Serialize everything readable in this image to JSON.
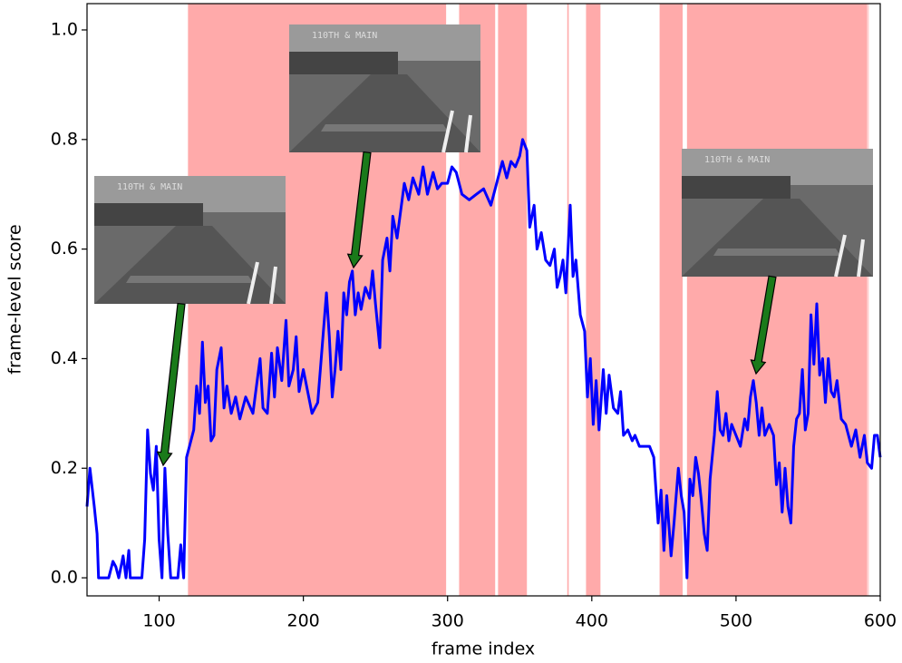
{
  "chart_data": {
    "type": "line",
    "xlabel": "frame index",
    "ylabel": "frame-level score",
    "color": "#0000ff",
    "shade_color": "#ffaaaa",
    "xlim": [
      50,
      600
    ],
    "ylim": [
      -0.033,
      1.048
    ],
    "xticks": [
      100,
      200,
      300,
      400,
      500,
      600
    ],
    "yticks": [
      {
        "value": 0,
        "label": "0.0"
      },
      {
        "value": 0.2,
        "label": "0.2"
      },
      {
        "value": 0.4,
        "label": "0.4"
      },
      {
        "value": 0.6,
        "label": "0.6"
      },
      {
        "value": 0.8,
        "label": "0.8"
      },
      {
        "value": 1,
        "label": "1.0"
      }
    ],
    "shaded_spans": [
      [
        120,
        299
      ],
      [
        308,
        333
      ],
      [
        335,
        355
      ],
      [
        383,
        384
      ],
      [
        396,
        406
      ],
      [
        447,
        463
      ],
      [
        466,
        591
      ],
      [
        591.5,
        592
      ]
    ],
    "x": [
      50,
      52,
      55,
      57,
      58,
      65,
      68,
      70,
      72,
      75,
      77,
      79,
      80,
      88,
      90,
      92,
      94,
      96,
      98,
      100,
      102,
      104,
      106,
      108,
      113,
      115,
      117,
      119,
      121,
      124,
      126,
      128,
      130,
      132,
      134,
      136,
      138,
      140,
      143,
      145,
      147,
      150,
      153,
      156,
      160,
      165,
      168,
      170,
      172,
      175,
      178,
      180,
      182,
      185,
      188,
      190,
      193,
      195,
      197,
      200,
      203,
      206,
      210,
      213,
      216,
      218,
      220,
      222,
      224,
      226,
      228,
      230,
      232,
      234,
      236,
      238,
      240,
      243,
      246,
      248,
      250,
      253,
      255,
      258,
      260,
      262,
      265,
      268,
      270,
      273,
      276,
      280,
      283,
      286,
      290,
      293,
      296,
      300,
      303,
      306,
      310,
      315,
      320,
      325,
      330,
      335,
      338,
      341,
      344,
      347,
      350,
      352,
      355,
      357,
      360,
      362,
      365,
      368,
      371,
      374,
      376,
      378,
      380,
      382,
      385,
      387,
      389,
      392,
      395,
      397,
      399,
      401,
      403,
      405,
      408,
      410,
      412,
      415,
      418,
      420,
      422,
      425,
      428,
      430,
      433,
      436,
      440,
      443,
      446,
      448,
      450,
      452,
      455,
      457,
      460,
      462,
      464,
      466,
      468,
      470,
      472,
      474,
      476,
      478,
      480,
      482,
      485,
      487,
      489,
      491,
      493,
      495,
      497,
      500,
      503,
      506,
      508,
      510,
      512,
      514,
      516,
      518,
      520,
      523,
      526,
      528,
      530,
      532,
      534,
      536,
      538,
      540,
      542,
      544,
      546,
      548,
      550,
      552,
      554,
      556,
      558,
      560,
      562,
      564,
      566,
      568,
      570,
      573,
      576,
      580,
      583,
      586,
      589,
      591,
      594,
      596,
      598,
      600
    ],
    "values": [
      0.13,
      0.2,
      0.13,
      0.08,
      0.0,
      0.0,
      0.03,
      0.02,
      0.0,
      0.04,
      0.0,
      0.05,
      0.0,
      0.0,
      0.07,
      0.27,
      0.19,
      0.16,
      0.24,
      0.07,
      0.0,
      0.2,
      0.08,
      0.0,
      0.0,
      0.06,
      0.0,
      0.22,
      0.24,
      0.27,
      0.35,
      0.3,
      0.43,
      0.32,
      0.35,
      0.25,
      0.26,
      0.38,
      0.42,
      0.31,
      0.35,
      0.3,
      0.33,
      0.29,
      0.33,
      0.3,
      0.36,
      0.4,
      0.31,
      0.3,
      0.41,
      0.33,
      0.42,
      0.36,
      0.47,
      0.35,
      0.38,
      0.44,
      0.34,
      0.38,
      0.34,
      0.3,
      0.32,
      0.42,
      0.52,
      0.44,
      0.33,
      0.38,
      0.45,
      0.38,
      0.52,
      0.48,
      0.54,
      0.56,
      0.48,
      0.52,
      0.49,
      0.53,
      0.51,
      0.56,
      0.5,
      0.42,
      0.58,
      0.62,
      0.56,
      0.66,
      0.62,
      0.68,
      0.72,
      0.69,
      0.73,
      0.7,
      0.75,
      0.7,
      0.74,
      0.71,
      0.72,
      0.72,
      0.75,
      0.74,
      0.7,
      0.69,
      0.7,
      0.71,
      0.68,
      0.73,
      0.76,
      0.73,
      0.76,
      0.75,
      0.77,
      0.8,
      0.78,
      0.64,
      0.68,
      0.6,
      0.63,
      0.58,
      0.57,
      0.6,
      0.53,
      0.55,
      0.58,
      0.52,
      0.68,
      0.55,
      0.58,
      0.48,
      0.45,
      0.33,
      0.4,
      0.28,
      0.36,
      0.27,
      0.38,
      0.3,
      0.37,
      0.31,
      0.3,
      0.34,
      0.26,
      0.27,
      0.25,
      0.26,
      0.24,
      0.24,
      0.24,
      0.22,
      0.1,
      0.16,
      0.05,
      0.15,
      0.04,
      0.1,
      0.2,
      0.15,
      0.12,
      0.0,
      0.18,
      0.15,
      0.22,
      0.19,
      0.14,
      0.08,
      0.05,
      0.18,
      0.26,
      0.34,
      0.27,
      0.26,
      0.3,
      0.25,
      0.28,
      0.26,
      0.24,
      0.29,
      0.27,
      0.33,
      0.36,
      0.32,
      0.26,
      0.31,
      0.26,
      0.28,
      0.26,
      0.17,
      0.21,
      0.12,
      0.2,
      0.13,
      0.1,
      0.24,
      0.29,
      0.3,
      0.38,
      0.27,
      0.3,
      0.48,
      0.39,
      0.5,
      0.37,
      0.4,
      0.32,
      0.4,
      0.34,
      0.33,
      0.36,
      0.29,
      0.28,
      0.24,
      0.27,
      0.22,
      0.26,
      0.21,
      0.2,
      0.26,
      0.26,
      0.22
    ]
  }
}
